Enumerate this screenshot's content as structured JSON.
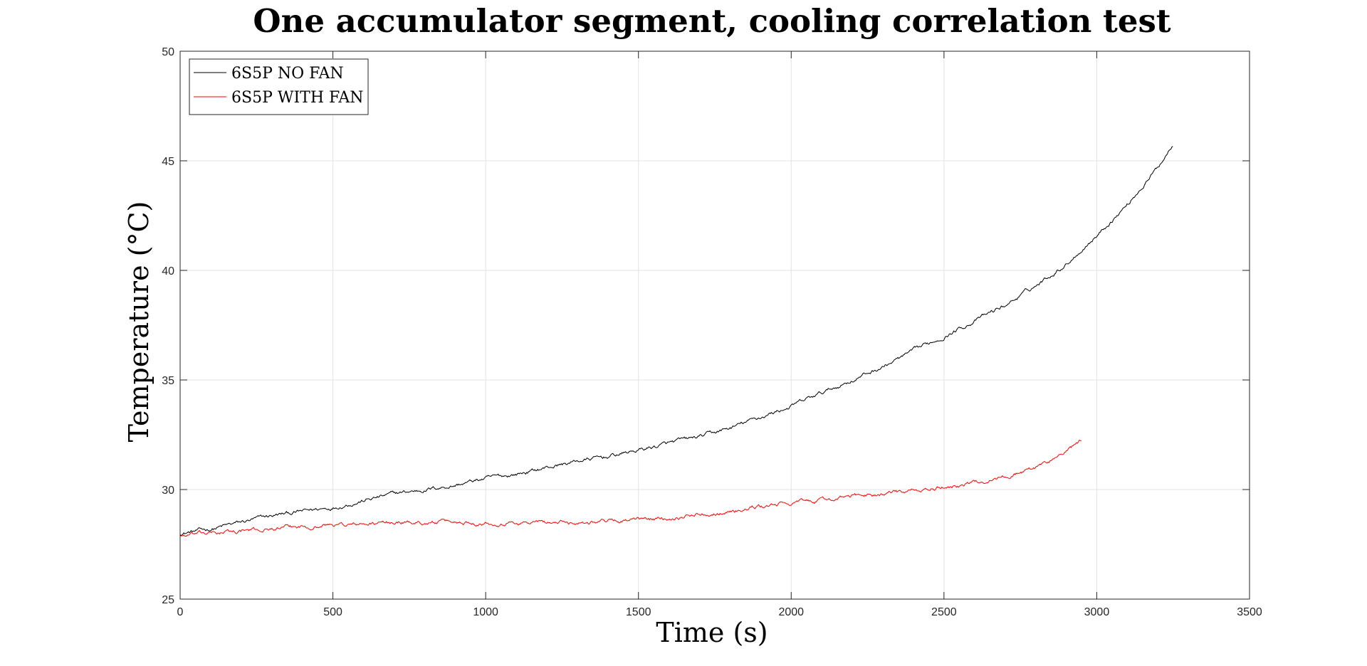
{
  "chart_data": {
    "type": "line",
    "title": "One accumulator segment, cooling correlation test",
    "xlabel": "Time (s)",
    "ylabel": "Temperature (°C)",
    "xlim": [
      0,
      3500
    ],
    "ylim": [
      25,
      50
    ],
    "xticks": [
      0,
      500,
      1000,
      1500,
      2000,
      2500,
      3000,
      3500
    ],
    "yticks": [
      25,
      30,
      35,
      40,
      45,
      50
    ],
    "grid": true,
    "legend_position": "top-left",
    "series": [
      {
        "name": "6S5P NO FAN",
        "color": "#000000",
        "x": [
          0,
          100,
          200,
          300,
          400,
          500,
          600,
          700,
          800,
          900,
          1000,
          1100,
          1200,
          1300,
          1400,
          1500,
          1600,
          1700,
          1800,
          1900,
          2000,
          2100,
          2200,
          2300,
          2400,
          2500,
          2600,
          2700,
          2800,
          2900,
          3000,
          3100,
          3200,
          3250
        ],
        "y": [
          28.0,
          28.2,
          28.5,
          28.8,
          29.0,
          29.2,
          29.5,
          29.8,
          30.0,
          30.2,
          30.5,
          30.7,
          31.0,
          31.3,
          31.5,
          31.8,
          32.1,
          32.4,
          32.8,
          33.3,
          33.8,
          34.4,
          35.0,
          35.6,
          36.3,
          37.0,
          37.7,
          38.4,
          39.3,
          40.3,
          41.6,
          43.0,
          44.7,
          45.8
        ]
      },
      {
        "name": "6S5P WITH FAN",
        "color": "#ff0000",
        "x": [
          0,
          100,
          200,
          300,
          400,
          500,
          600,
          700,
          800,
          900,
          1000,
          1100,
          1200,
          1300,
          1400,
          1500,
          1600,
          1700,
          1800,
          1900,
          2000,
          2100,
          2200,
          2300,
          2400,
          2500,
          2600,
          2700,
          2800,
          2900,
          2950
        ],
        "y": [
          27.9,
          28.0,
          28.1,
          28.2,
          28.3,
          28.4,
          28.4,
          28.5,
          28.5,
          28.5,
          28.5,
          28.5,
          28.5,
          28.5,
          28.6,
          28.6,
          28.7,
          28.9,
          29.0,
          29.2,
          29.4,
          29.5,
          29.7,
          29.8,
          29.9,
          30.1,
          30.3,
          30.6,
          31.0,
          31.7,
          32.2
        ]
      }
    ]
  }
}
